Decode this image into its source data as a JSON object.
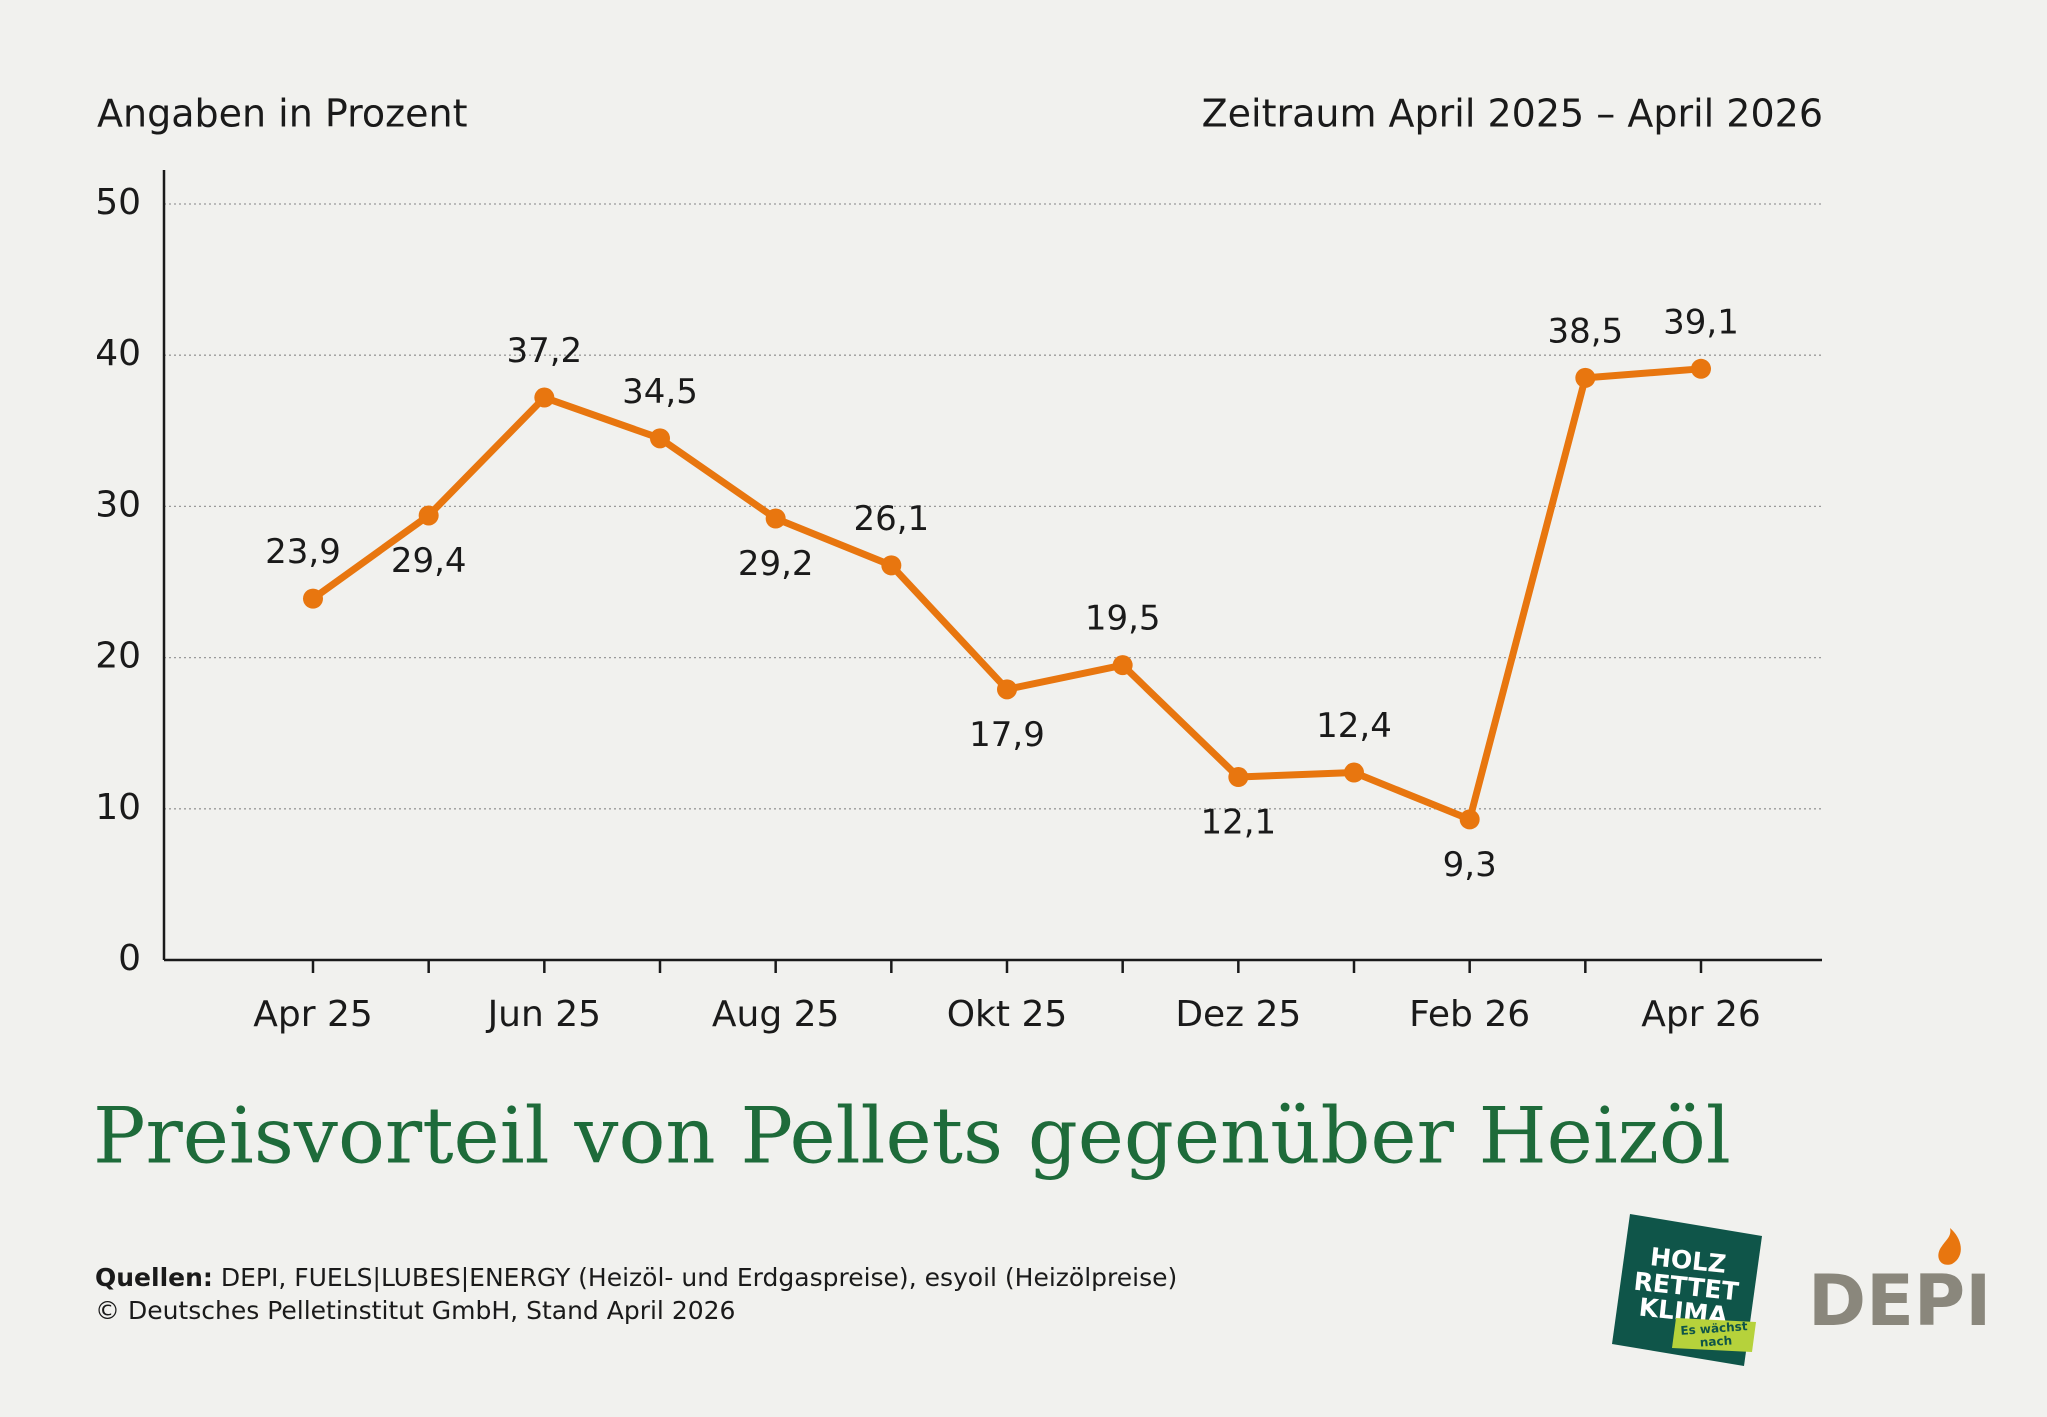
{
  "chart_data": {
    "type": "line",
    "subtitle_left": "Angaben in Prozent",
    "subtitle_right": "Zeitraum April 2025 – April 2026",
    "title": "Preisvorteil von Pellets gegenüber Heizöl",
    "categories": [
      "Apr 25",
      null,
      "Jun 25",
      null,
      "Aug 25",
      null,
      "Okt 25",
      null,
      "Dez 25",
      null,
      "Feb 26",
      null,
      "Apr 26"
    ],
    "values": [
      23.9,
      29.4,
      37.2,
      34.5,
      29.2,
      26.1,
      17.9,
      19.5,
      12.1,
      12.4,
      9.3,
      38.5,
      39.1
    ],
    "value_labels": [
      "23,9",
      "29,4",
      "37,2",
      "34,5",
      "29,2",
      "26,1",
      "17,9",
      "19,5",
      "12,1",
      "12,4",
      "9,3",
      "38,5",
      "39,1"
    ],
    "color": "#e8760f",
    "ylim": [
      0,
      50
    ],
    "yticks": [
      0,
      10,
      20,
      30,
      40,
      50
    ],
    "grid": true
  },
  "footer": {
    "sources_label": "Quellen:",
    "sources_text": "DEPI, FUELS|LUBES|ENERGY (Heizöl- und Erdgaspreise), esyoil (Heizölpreise)",
    "copyright": "© Deutsches Pelletinstitut GmbH, Stand April 2026"
  },
  "logos": {
    "holz": [
      "HOLZ",
      "RETTET",
      "KLIMA"
    ],
    "holz_tag": [
      "Es wächst",
      "nach"
    ],
    "depi": "DEPI"
  }
}
